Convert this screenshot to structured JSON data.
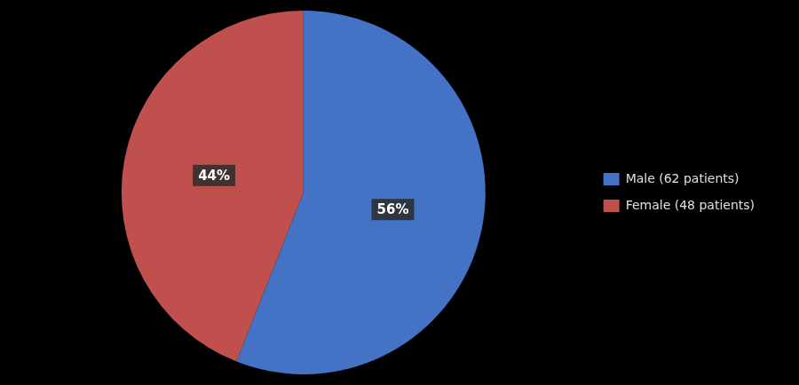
{
  "chart_data": {
    "type": "pie",
    "categories": [
      "Male (62 patients)",
      "Female (48 patients)"
    ],
    "values": [
      56,
      44
    ],
    "value_labels": [
      "56%",
      "44%"
    ],
    "colors": [
      "#4472C4",
      "#C0504D"
    ],
    "data_labels": true,
    "legend": "right"
  }
}
